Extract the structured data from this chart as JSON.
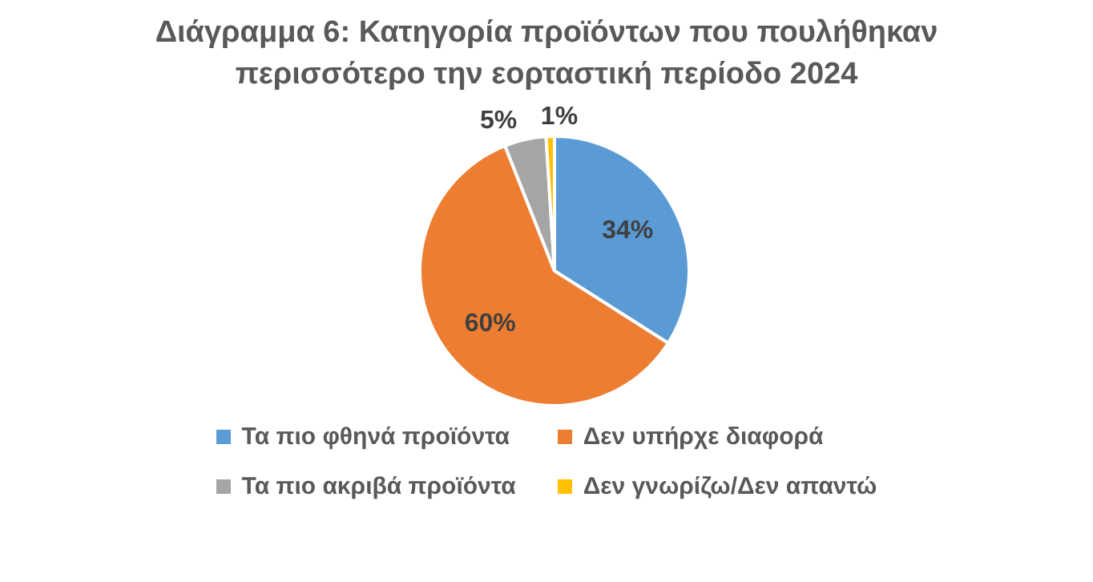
{
  "chart_data": {
    "type": "pie",
    "title": "Διάγραμμα 6: Κατηγορία προϊόντων που πουλήθηκαν περισσότερο την εορταστική περίοδο 2024",
    "categories": [
      "Τα πιο φθηνά προϊόντα",
      "Δεν υπήρχε διαφορά",
      "Τα πιο ακριβά προϊόντα",
      "Δεν γνωρίζω/Δεν απαντώ"
    ],
    "values": [
      34,
      60,
      5,
      1
    ],
    "colors": [
      "#5b9bd5",
      "#ed7d31",
      "#a5a5a5",
      "#ffc000"
    ],
    "value_labels": [
      "34%",
      "60%",
      "5%",
      "1%"
    ],
    "legend": "bottom"
  }
}
